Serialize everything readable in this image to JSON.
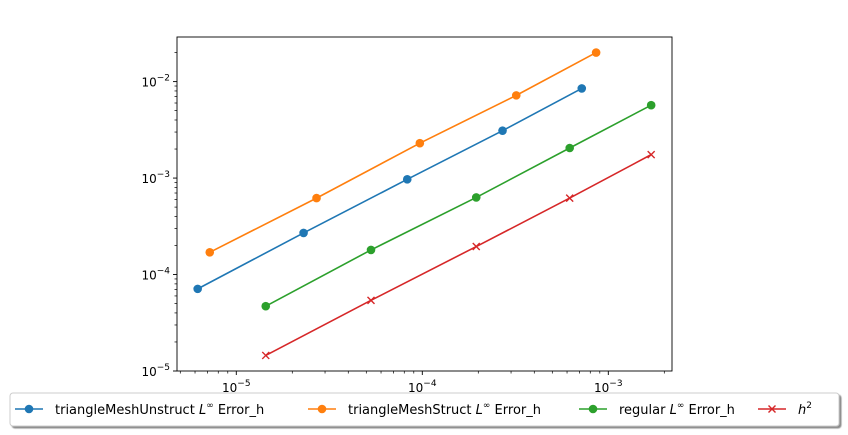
{
  "chart_data": {
    "type": "line",
    "xscale": "log",
    "yscale": "log",
    "xlim": [
      4.8e-06,
      0.0022
    ],
    "ylim": [
      1e-05,
      0.029
    ],
    "x_ticks": [
      {
        "value": 1e-05,
        "base": "10",
        "exp": "−5"
      },
      {
        "value": 0.0001,
        "base": "10",
        "exp": "−4"
      },
      {
        "value": 0.001,
        "base": "10",
        "exp": "−3"
      }
    ],
    "y_ticks": [
      {
        "value": 1e-05,
        "base": "10",
        "exp": "−5"
      },
      {
        "value": 0.0001,
        "base": "10",
        "exp": "−4"
      },
      {
        "value": 0.001,
        "base": "10",
        "exp": "−3"
      },
      {
        "value": 0.01,
        "base": "10",
        "exp": "−2"
      }
    ],
    "series": [
      {
        "name": "triangleMeshUnstruct",
        "label_prefix": "triangleMeshUnstruct ",
        "label_math": "L",
        "label_sup": "∞",
        "label_suffix": " Error_h",
        "color": "#1f77b4",
        "marker": "circle",
        "x": [
          6.2e-06,
          2.3e-05,
          8.3e-05,
          0.00027,
          0.00072
        ],
        "y": [
          7.1e-05,
          0.00027,
          0.00097,
          0.0031,
          0.0085
        ]
      },
      {
        "name": "triangleMeshStruct",
        "label_prefix": "triangleMeshStruct ",
        "label_math": "L",
        "label_sup": "∞",
        "label_suffix": " Error_h",
        "color": "#ff7f0e",
        "marker": "circle",
        "x": [
          7.2e-06,
          2.7e-05,
          9.7e-05,
          0.00032,
          0.00086
        ],
        "y": [
          0.00017,
          0.00062,
          0.0023,
          0.0072,
          0.02
        ]
      },
      {
        "name": "regular",
        "label_prefix": "regular ",
        "label_math": "L",
        "label_sup": "∞",
        "label_suffix": " Error_h",
        "color": "#2ca02c",
        "marker": "circle",
        "x": [
          1.44e-05,
          5.3e-05,
          0.000195,
          0.00062,
          0.0017
        ],
        "y": [
          4.7e-05,
          0.00018,
          0.00063,
          0.00205,
          0.0057
        ]
      },
      {
        "name": "h^2",
        "label_prefix": "",
        "label_math": "h",
        "label_sup": "2",
        "label_suffix": "",
        "color": "#d62728",
        "marker": "x",
        "x": [
          1.44e-05,
          5.3e-05,
          0.000195,
          0.00062,
          0.0017
        ],
        "y": [
          1.45e-05,
          5.4e-05,
          0.000195,
          0.00062,
          0.00175
        ]
      }
    ],
    "legend_position": "bottom-center, below plot, horizontal",
    "title": "",
    "xlabel": "",
    "ylabel": ""
  }
}
